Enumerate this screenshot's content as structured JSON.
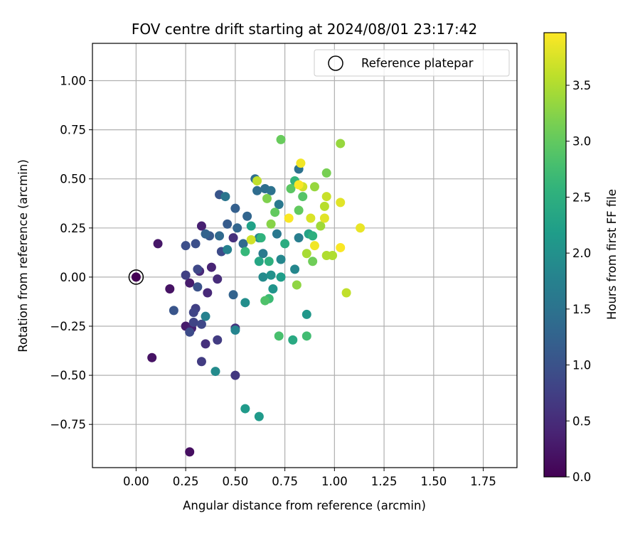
{
  "chart_data": {
    "type": "scatter",
    "title": "FOV centre drift starting at 2024/08/01 23:17:42",
    "xlabel": "Angular distance from reference (arcmin)",
    "ylabel": "Rotation from reference (arcmin)",
    "xlim": [
      -0.22,
      1.92
    ],
    "ylim": [
      -0.97,
      1.19
    ],
    "xticks": [
      0.0,
      0.25,
      0.5,
      0.75,
      1.0,
      1.25,
      1.5,
      1.75
    ],
    "yticks": [
      -0.75,
      -0.5,
      -0.25,
      0.0,
      0.25,
      0.5,
      0.75,
      1.0
    ],
    "xtick_labels": [
      "0.00",
      "0.25",
      "0.50",
      "0.75",
      "1.00",
      "1.25",
      "1.50",
      "1.75"
    ],
    "ytick_labels": [
      "−0.75",
      "−0.50",
      "−0.25",
      "0.00",
      "0.25",
      "0.50",
      "0.75",
      "1.00"
    ],
    "grid": true,
    "colormap": "viridis",
    "colorbar": {
      "label": "Hours from first FF file",
      "range": [
        0.0,
        3.97
      ],
      "ticks": [
        0.0,
        0.5,
        1.0,
        1.5,
        2.0,
        2.5,
        3.0,
        3.5
      ],
      "tick_labels": [
        "0.0",
        "0.5",
        "1.0",
        "1.5",
        "2.0",
        "2.5",
        "3.0",
        "3.5"
      ]
    },
    "legend": {
      "position": "top-right",
      "entries": [
        "Reference platepar"
      ]
    },
    "reference_point": {
      "x": 0.0,
      "y": 0.0
    },
    "points": [
      {
        "x": 0.0,
        "y": 0.0,
        "h": 0.0
      },
      {
        "x": 0.27,
        "y": -0.89,
        "h": 0.15
      },
      {
        "x": 0.08,
        "y": -0.41,
        "h": 0.2
      },
      {
        "x": 0.17,
        "y": -0.06,
        "h": 0.2
      },
      {
        "x": 0.11,
        "y": 0.17,
        "h": 0.25
      },
      {
        "x": 0.25,
        "y": -0.25,
        "h": 0.3
      },
      {
        "x": 0.27,
        "y": -0.03,
        "h": 0.3
      },
      {
        "x": 0.28,
        "y": -0.26,
        "h": 0.35
      },
      {
        "x": 0.33,
        "y": 0.26,
        "h": 0.35
      },
      {
        "x": 0.38,
        "y": 0.05,
        "h": 0.4
      },
      {
        "x": 0.32,
        "y": 0.03,
        "h": 0.45
      },
      {
        "x": 0.36,
        "y": -0.08,
        "h": 0.45
      },
      {
        "x": 0.41,
        "y": -0.01,
        "h": 0.5
      },
      {
        "x": 0.35,
        "y": -0.34,
        "h": 0.55
      },
      {
        "x": 0.49,
        "y": 0.2,
        "h": 0.55
      },
      {
        "x": 0.5,
        "y": -0.26,
        "h": 0.6
      },
      {
        "x": 0.5,
        "y": -0.5,
        "h": 0.65
      },
      {
        "x": 0.33,
        "y": -0.43,
        "h": 0.7
      },
      {
        "x": 0.41,
        "y": -0.32,
        "h": 0.7
      },
      {
        "x": 0.25,
        "y": 0.01,
        "h": 0.75
      },
      {
        "x": 0.3,
        "y": -0.16,
        "h": 0.75
      },
      {
        "x": 0.29,
        "y": -0.18,
        "h": 0.8
      },
      {
        "x": 0.29,
        "y": -0.23,
        "h": 0.8
      },
      {
        "x": 0.33,
        "y": -0.24,
        "h": 0.85
      },
      {
        "x": 0.31,
        "y": 0.04,
        "h": 0.85
      },
      {
        "x": 0.27,
        "y": -0.28,
        "h": 0.9
      },
      {
        "x": 0.43,
        "y": 0.13,
        "h": 0.9
      },
      {
        "x": 0.3,
        "y": 0.17,
        "h": 0.95
      },
      {
        "x": 0.25,
        "y": 0.16,
        "h": 0.95
      },
      {
        "x": 0.31,
        "y": -0.05,
        "h": 1.0
      },
      {
        "x": 0.19,
        "y": -0.17,
        "h": 1.05
      },
      {
        "x": 0.42,
        "y": 0.42,
        "h": 1.05
      },
      {
        "x": 0.37,
        "y": 0.21,
        "h": 1.1
      },
      {
        "x": 0.46,
        "y": 0.27,
        "h": 1.15
      },
      {
        "x": 0.5,
        "y": 0.35,
        "h": 1.2
      },
      {
        "x": 0.35,
        "y": 0.22,
        "h": 1.25
      },
      {
        "x": 0.49,
        "y": -0.09,
        "h": 1.25
      },
      {
        "x": 0.51,
        "y": 0.25,
        "h": 1.3
      },
      {
        "x": 0.56,
        "y": 0.31,
        "h": 1.3
      },
      {
        "x": 0.54,
        "y": 0.17,
        "h": 1.35
      },
      {
        "x": 0.42,
        "y": 0.21,
        "h": 1.35
      },
      {
        "x": 0.61,
        "y": 0.44,
        "h": 1.4
      },
      {
        "x": 0.65,
        "y": 0.45,
        "h": 1.45
      },
      {
        "x": 0.6,
        "y": 0.5,
        "h": 1.45
      },
      {
        "x": 0.82,
        "y": 0.55,
        "h": 1.5
      },
      {
        "x": 0.68,
        "y": 0.44,
        "h": 1.5
      },
      {
        "x": 0.45,
        "y": 0.41,
        "h": 1.55
      },
      {
        "x": 0.72,
        "y": 0.37,
        "h": 1.6
      },
      {
        "x": 0.71,
        "y": 0.22,
        "h": 1.6
      },
      {
        "x": 0.64,
        "y": 0.12,
        "h": 1.65
      },
      {
        "x": 0.82,
        "y": 0.2,
        "h": 1.7
      },
      {
        "x": 0.35,
        "y": -0.2,
        "h": 1.75
      },
      {
        "x": 0.46,
        "y": 0.14,
        "h": 1.75
      },
      {
        "x": 0.62,
        "y": 0.2,
        "h": 1.8
      },
      {
        "x": 0.5,
        "y": -0.27,
        "h": 1.8
      },
      {
        "x": 0.8,
        "y": 0.04,
        "h": 1.85
      },
      {
        "x": 0.73,
        "y": 0.09,
        "h": 1.85
      },
      {
        "x": 0.64,
        "y": 0.0,
        "h": 1.9
      },
      {
        "x": 0.4,
        "y": -0.48,
        "h": 1.9
      },
      {
        "x": 0.55,
        "y": -0.13,
        "h": 1.95
      },
      {
        "x": 0.68,
        "y": 0.01,
        "h": 2.0
      },
      {
        "x": 0.69,
        "y": -0.06,
        "h": 2.05
      },
      {
        "x": 0.86,
        "y": -0.19,
        "h": 2.1
      },
      {
        "x": 0.62,
        "y": -0.71,
        "h": 2.15
      },
      {
        "x": 0.55,
        "y": -0.67,
        "h": 2.15
      },
      {
        "x": 0.73,
        "y": 0.0,
        "h": 2.2
      },
      {
        "x": 0.58,
        "y": 0.26,
        "h": 2.25
      },
      {
        "x": 0.87,
        "y": 0.22,
        "h": 2.3
      },
      {
        "x": 0.62,
        "y": 0.08,
        "h": 2.35
      },
      {
        "x": 0.79,
        "y": -0.32,
        "h": 2.4
      },
      {
        "x": 0.75,
        "y": 0.17,
        "h": 2.45
      },
      {
        "x": 0.67,
        "y": 0.08,
        "h": 2.5
      },
      {
        "x": 0.89,
        "y": 0.21,
        "h": 2.5
      },
      {
        "x": 0.63,
        "y": 0.2,
        "h": 2.55
      },
      {
        "x": 0.8,
        "y": 0.49,
        "h": 2.6
      },
      {
        "x": 0.55,
        "y": 0.13,
        "h": 2.65
      },
      {
        "x": 0.67,
        "y": -0.11,
        "h": 2.7
      },
      {
        "x": 0.86,
        "y": -0.3,
        "h": 2.75
      },
      {
        "x": 0.72,
        "y": -0.3,
        "h": 2.8
      },
      {
        "x": 0.65,
        "y": -0.12,
        "h": 2.85
      },
      {
        "x": 0.84,
        "y": 0.41,
        "h": 2.9
      },
      {
        "x": 0.78,
        "y": 0.45,
        "h": 2.95
      },
      {
        "x": 0.7,
        "y": 0.33,
        "h": 3.0
      },
      {
        "x": 0.82,
        "y": 0.34,
        "h": 3.0
      },
      {
        "x": 0.73,
        "y": 0.7,
        "h": 3.05
      },
      {
        "x": 0.89,
        "y": 0.08,
        "h": 3.1
      },
      {
        "x": 0.96,
        "y": 0.53,
        "h": 3.15
      },
      {
        "x": 0.66,
        "y": 0.4,
        "h": 3.2
      },
      {
        "x": 0.68,
        "y": 0.27,
        "h": 3.25
      },
      {
        "x": 0.81,
        "y": -0.04,
        "h": 3.3
      },
      {
        "x": 1.03,
        "y": 0.68,
        "h": 3.35
      },
      {
        "x": 0.9,
        "y": 0.46,
        "h": 3.35
      },
      {
        "x": 0.93,
        "y": 0.26,
        "h": 3.4
      },
      {
        "x": 0.86,
        "y": 0.12,
        "h": 3.45
      },
      {
        "x": 0.96,
        "y": 0.11,
        "h": 3.5
      },
      {
        "x": 0.99,
        "y": 0.11,
        "h": 3.5
      },
      {
        "x": 0.95,
        "y": 0.36,
        "h": 3.55
      },
      {
        "x": 0.61,
        "y": 0.49,
        "h": 3.6
      },
      {
        "x": 1.06,
        "y": -0.08,
        "h": 3.6
      },
      {
        "x": 0.96,
        "y": 0.41,
        "h": 3.65
      },
      {
        "x": 0.84,
        "y": 0.46,
        "h": 3.7
      },
      {
        "x": 0.58,
        "y": 0.19,
        "h": 3.7
      },
      {
        "x": 0.88,
        "y": 0.3,
        "h": 3.75
      },
      {
        "x": 1.03,
        "y": 0.38,
        "h": 3.8
      },
      {
        "x": 0.95,
        "y": 0.3,
        "h": 3.8
      },
      {
        "x": 1.13,
        "y": 0.25,
        "h": 3.85
      },
      {
        "x": 0.83,
        "y": 0.58,
        "h": 3.9
      },
      {
        "x": 0.9,
        "y": 0.16,
        "h": 3.9
      },
      {
        "x": 1.03,
        "y": 0.15,
        "h": 3.95
      },
      {
        "x": 0.77,
        "y": 0.3,
        "h": 3.95
      },
      {
        "x": 0.82,
        "y": 0.47,
        "h": 3.95
      }
    ]
  }
}
